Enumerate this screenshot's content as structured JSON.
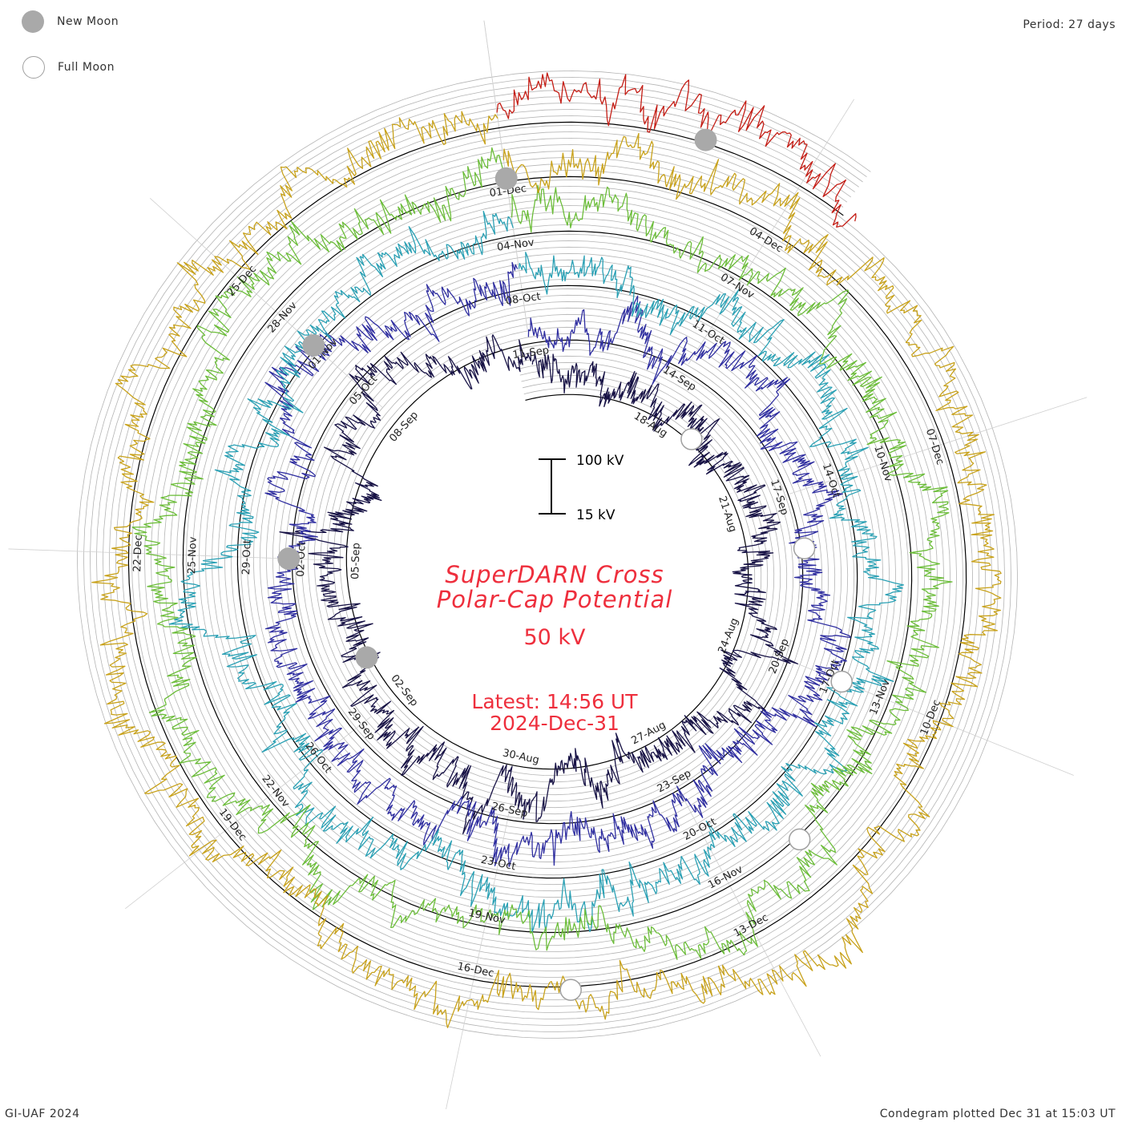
{
  "legend": {
    "new_moon_label": "New Moon",
    "full_moon_label": "Full Moon"
  },
  "period_label": "Period: 27 days",
  "footer_left": "GI-UAF 2024",
  "footer_right": "Condegram plotted Dec 31 at 15:03 UT",
  "center": {
    "title_line1": "SuperDARN Cross",
    "title_line2": "Polar-Cap Potential",
    "current_value": "50 kV",
    "latest_line1": "Latest: 14:56 UT",
    "latest_line2": "2024-Dec-31"
  },
  "scale_bar": {
    "top_label": "100 kV",
    "bottom_label": "15 kV"
  },
  "colors": {
    "title": "#ee2f3d",
    "grid": "#b4b4b4",
    "baseline": "#000000",
    "moon_fill": "#a9a9a9"
  },
  "chart_data": {
    "type": "spiral-condegram",
    "title": "SuperDARN Cross Polar-Cap Potential",
    "units": "kV",
    "period_days": 27,
    "start_date": "2024-08-15",
    "end_date": "2024-12-31",
    "latest_value_kv": 50,
    "scale_min_kv": 15,
    "scale_max_kv": 100,
    "cycles": [
      {
        "index": 1,
        "start": "2024-08-15",
        "end": "2024-09-11",
        "color": "#171245",
        "labels": [
          "18-Aug",
          "21-Aug",
          "24-Aug",
          "27-Aug",
          "30-Aug",
          "02-Sep",
          "05-Sep",
          "08-Sep",
          "11-Sep"
        ]
      },
      {
        "index": 2,
        "start": "2024-09-11",
        "end": "2024-10-08",
        "color": "#2f2ea0",
        "labels": [
          "14-Sep",
          "17-Sep",
          "20-Sep",
          "23-Sep",
          "26-Sep",
          "29-Sep",
          "02-Oct",
          "05-Oct",
          "08-Oct"
        ]
      },
      {
        "index": 3,
        "start": "2024-10-08",
        "end": "2024-11-04",
        "color": "#2aa0b4",
        "labels": [
          "11-Oct",
          "14-Oct",
          "17-Oct",
          "20-Oct",
          "23-Oct",
          "26-Oct",
          "29-Oct",
          "01-Nov",
          "04-Nov"
        ]
      },
      {
        "index": 4,
        "start": "2024-11-04",
        "end": "2024-12-01",
        "color": "#6cbd3a",
        "labels": [
          "07-Nov",
          "10-Nov",
          "13-Nov",
          "16-Nov",
          "19-Nov",
          "22-Nov",
          "25-Nov",
          "28-Nov",
          "01-Dec"
        ]
      },
      {
        "index": 5,
        "start": "2024-12-01",
        "end": "2024-12-28",
        "color": "#c8a21c",
        "labels": [
          "04-Dec",
          "07-Dec",
          "10-Dec",
          "13-Dec",
          "16-Dec",
          "19-Dec",
          "22-Dec",
          "25-Dec"
        ]
      },
      {
        "index": 6,
        "start": "2024-12-28",
        "end": "2024-12-31",
        "color": "#c41e16",
        "labels": []
      }
    ],
    "new_moons": [
      "2024-09-03",
      "2024-10-02",
      "2024-11-01",
      "2024-12-01",
      "2024-12-30"
    ],
    "full_moons": [
      "2024-08-19",
      "2024-09-18",
      "2024-10-17",
      "2024-11-15",
      "2024-12-15"
    ]
  }
}
